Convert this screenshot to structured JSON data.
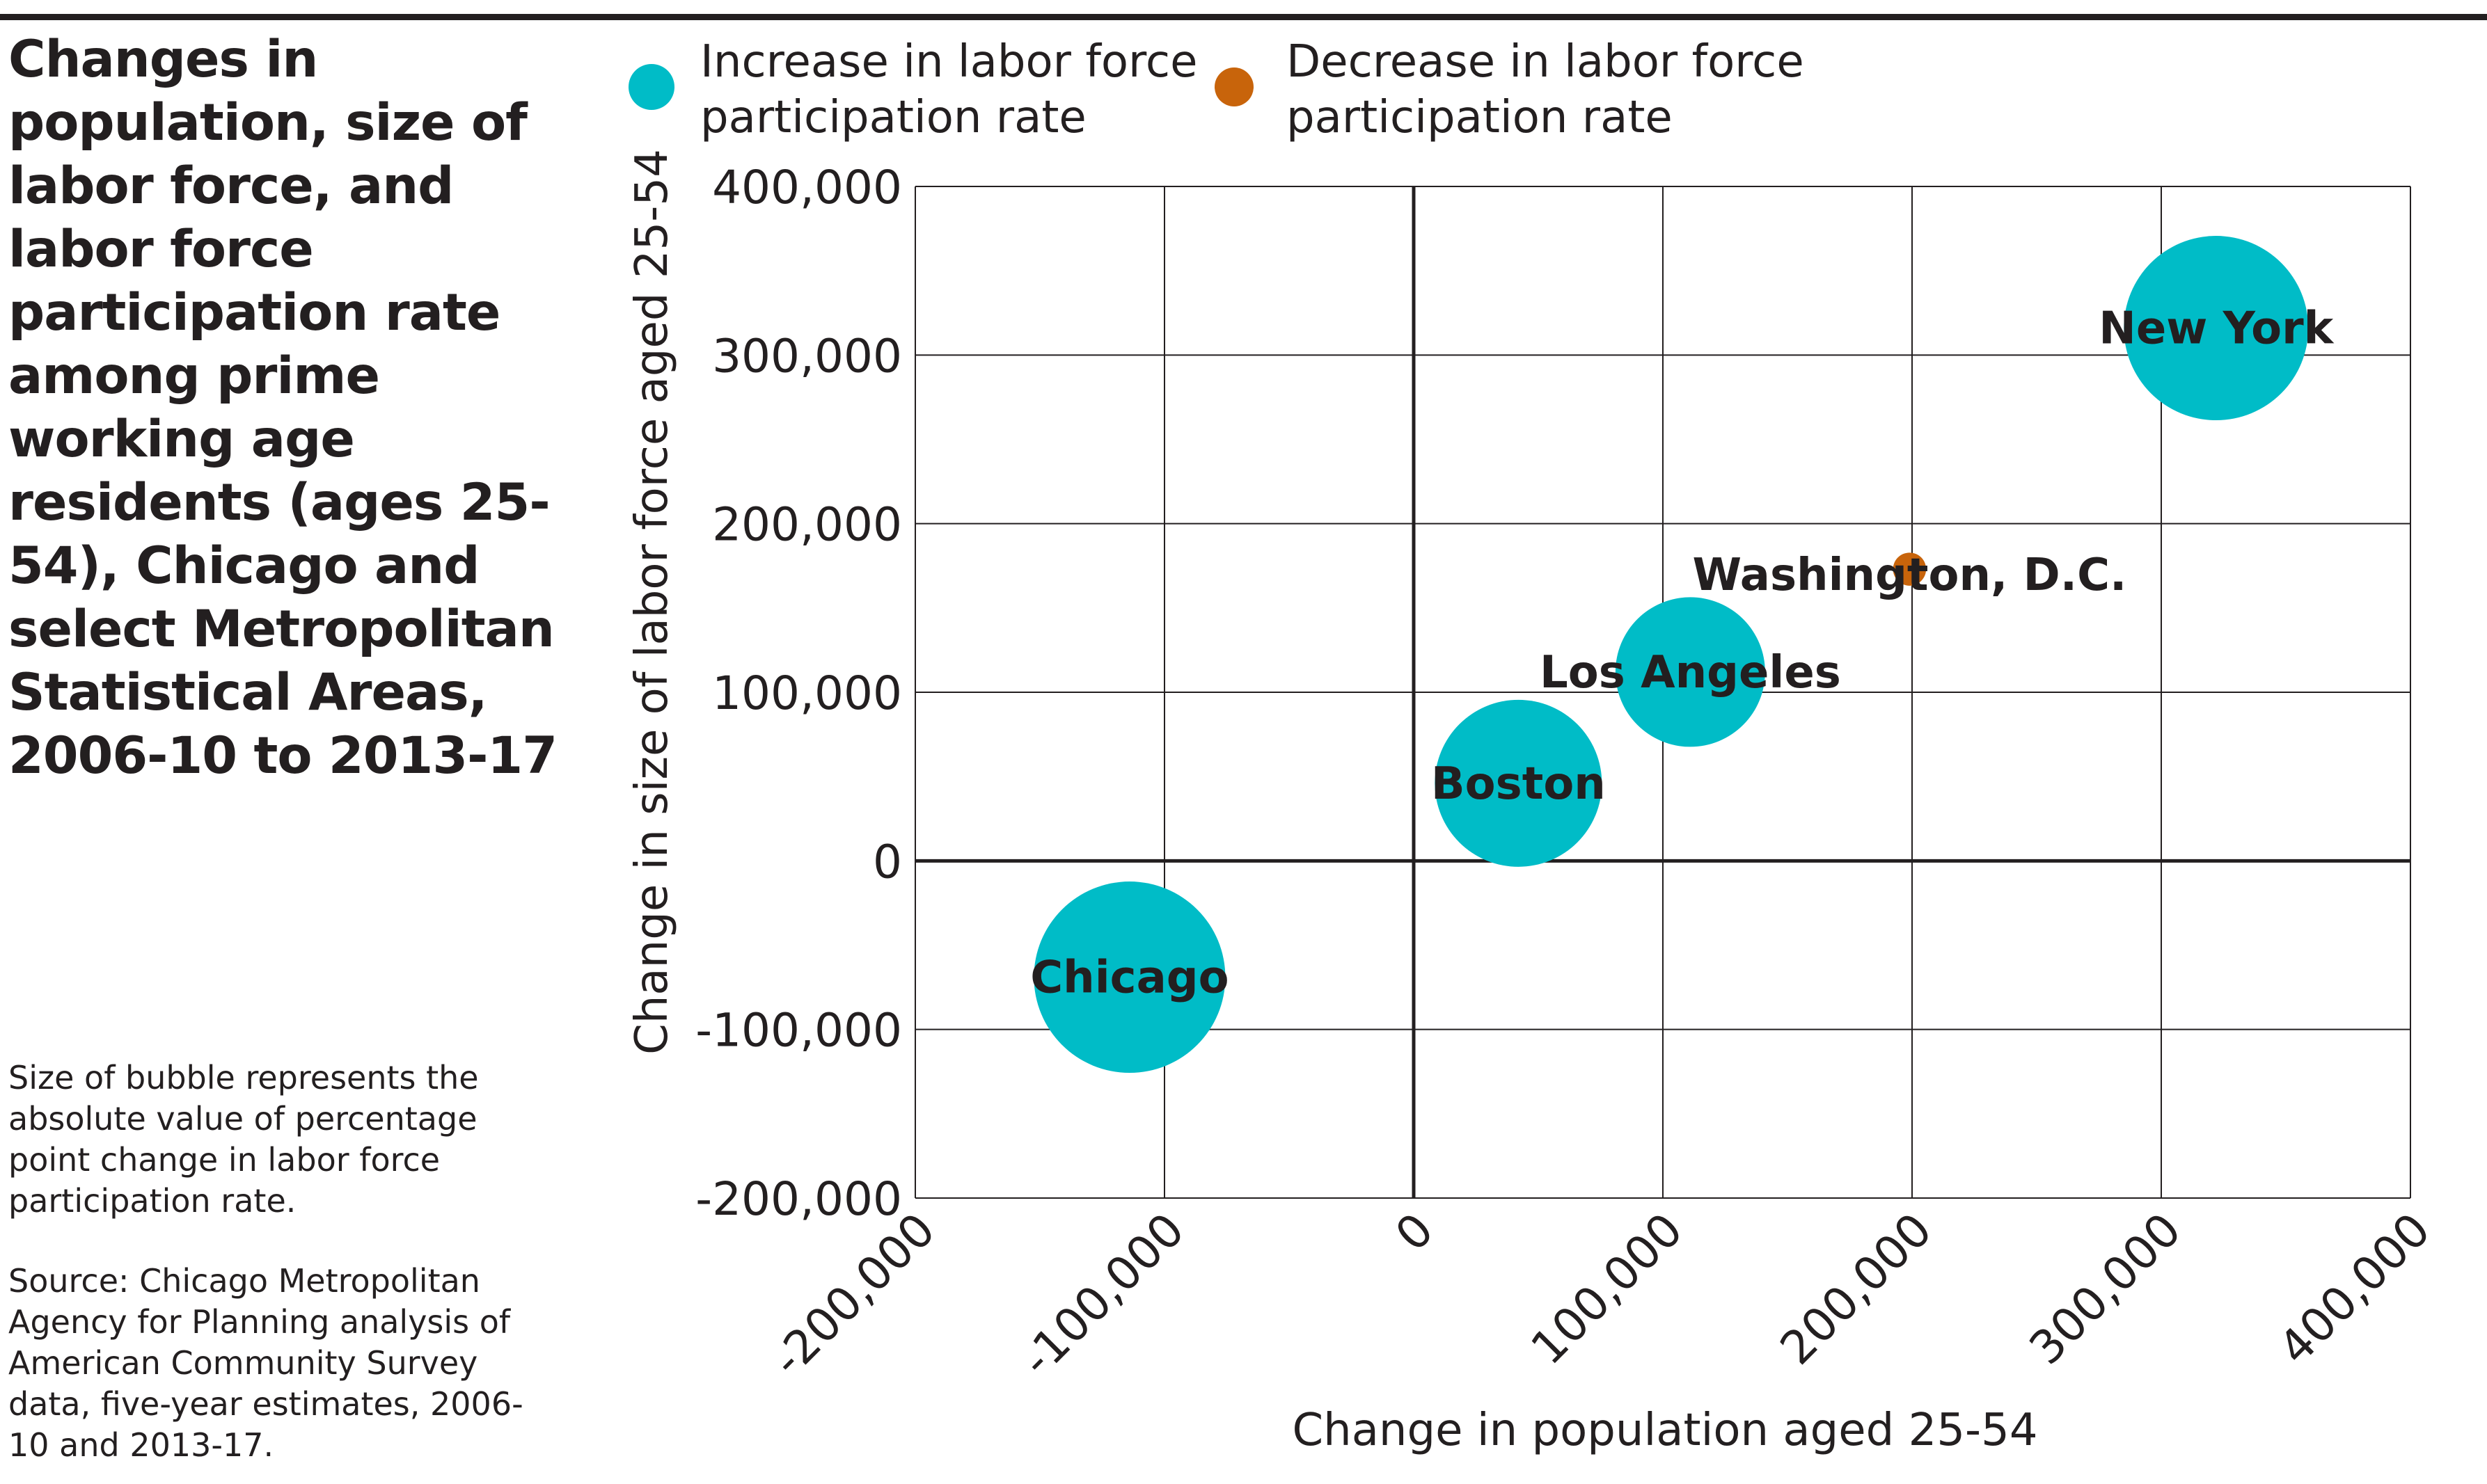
{
  "title": "Changes in population, size of labor force, and labor force participation rate among prime working age residents (ages 25-54), Chicago and select Metropolitan Statistical Areas, 2006-10 to 2013-17",
  "bubble_note": "Size of bubble represents the absolute value of percentage point change in labor force participation rate.",
  "source_note": "Source: Chicago Metropolitan Agency for Planning analysis of American Community Survey data, five-year estimates, 2006-10 and 2013-17.",
  "colors": {
    "increase": "#00bcc7",
    "decrease": "#c8640b",
    "grid": "#231f20"
  },
  "chart_data": {
    "type": "scatter",
    "xlabel": "Change in population aged 25-54",
    "ylabel": "Change in size of labor force aged 25-54",
    "xlim": [
      -200000,
      400000
    ],
    "ylim": [
      -200000,
      400000
    ],
    "xticks": [
      -200000,
      -100000,
      0,
      100000,
      200000,
      300000,
      400000
    ],
    "yticks": [
      -200000,
      -100000,
      0,
      100000,
      200000,
      300000,
      400000
    ],
    "xtick_labels": [
      "-200,000",
      "-100,000",
      "0",
      "100,000",
      "200,000",
      "300,000",
      "400,000"
    ],
    "ytick_labels": [
      "-200,000",
      "-100,000",
      "0",
      "100,000",
      "200,000",
      "300,000",
      "400,000"
    ],
    "grid": true,
    "legend_position": "top",
    "series": [
      {
        "name": "Increase in labor force participation rate",
        "color": "#00bcc7"
      },
      {
        "name": "Decrease in labor force participation rate",
        "color": "#c8640b"
      }
    ],
    "points": [
      {
        "label": "Chicago",
        "x": -114000,
        "y": -69000,
        "size": 5.5,
        "series": 0
      },
      {
        "label": "Boston",
        "x": 42000,
        "y": 46000,
        "size": 4.8,
        "series": 0
      },
      {
        "label": "Los Angeles",
        "x": 111000,
        "y": 112000,
        "size": 4.3,
        "series": 0
      },
      {
        "label": "Washington, D.C.",
        "x": 199000,
        "y": 173000,
        "size": 0.95,
        "series": 1
      },
      {
        "label": "New York",
        "x": 322000,
        "y": 316000,
        "size": 5.3,
        "series": 0
      }
    ]
  }
}
